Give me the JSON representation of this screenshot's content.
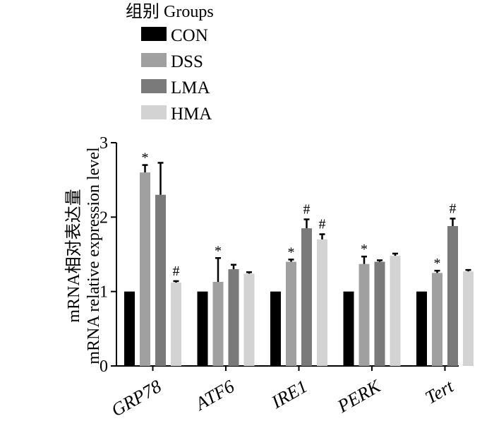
{
  "chart_data": {
    "type": "bar",
    "legend_title": "组别 Groups",
    "legend_position": "top-left",
    "ylabel_line1": "mRNA相对表达量",
    "ylabel_line2": "mRNA relative expression level",
    "ylim": [
      0,
      3
    ],
    "yticks": [
      "0",
      "1",
      "2",
      "3"
    ],
    "grid": false,
    "categories": [
      "GRP78",
      "ATF6",
      "IRE1",
      "PERK",
      "Tert"
    ],
    "series": [
      {
        "name": "CON",
        "color": "#000000",
        "values": [
          1.0,
          1.0,
          1.0,
          1.0,
          1.0
        ],
        "errors": [
          0,
          0,
          0,
          0,
          0
        ],
        "marks": [
          "",
          "",
          "",
          "",
          ""
        ]
      },
      {
        "name": "DSS",
        "color": "#a0a0a0",
        "values": [
          2.6,
          1.13,
          1.4,
          1.37,
          1.25
        ],
        "errors": [
          0.1,
          0.32,
          0.03,
          0.1,
          0.03
        ],
        "marks": [
          "*",
          "*",
          "*",
          "*",
          "*"
        ]
      },
      {
        "name": "LMA",
        "color": "#7a7a7a",
        "values": [
          2.3,
          1.3,
          1.85,
          1.4,
          1.88
        ],
        "errors": [
          0.43,
          0.06,
          0.12,
          0.02,
          0.1
        ],
        "marks": [
          "",
          "",
          "#",
          "",
          "#"
        ]
      },
      {
        "name": "HMA",
        "color": "#d3d3d3",
        "values": [
          1.12,
          1.24,
          1.7,
          1.48,
          1.27
        ],
        "errors": [
          0.02,
          0.02,
          0.07,
          0.03,
          0.02
        ],
        "marks": [
          "#",
          "",
          "#",
          "",
          ""
        ]
      }
    ]
  }
}
